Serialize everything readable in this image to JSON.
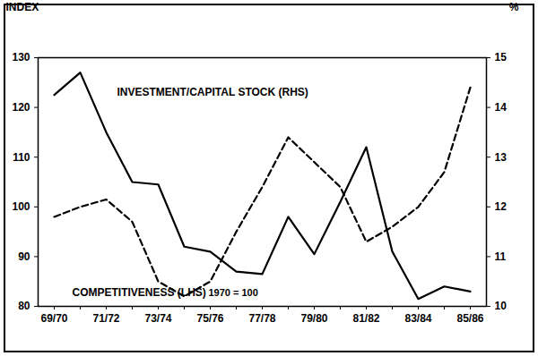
{
  "chart_data": {
    "type": "line",
    "categories": [
      "69/70",
      null,
      "71/72",
      null,
      "73/74",
      null,
      "75/76",
      null,
      "77/78",
      null,
      "79/80",
      null,
      "81/82",
      null,
      "83/84",
      null,
      "85/86"
    ],
    "series": [
      {
        "name": "INVESTMENT/CAPITAL STOCK (RHS)",
        "axis": "y2",
        "color": "#000000",
        "line_style": "solid",
        "values": [
          14.25,
          14.7,
          13.5,
          12.5,
          12.45,
          11.2,
          11.1,
          10.7,
          10.65,
          11.8,
          11.05,
          12.1,
          13.2,
          11.1,
          10.15,
          10.4,
          10.3
        ]
      },
      {
        "name": "COMPETITIVENESS (LHS)",
        "color": "#000000",
        "line_style": "dashed",
        "values": [
          98,
          100,
          101.5,
          97,
          85,
          82,
          85,
          95,
          104,
          114,
          109,
          104,
          93,
          96,
          100,
          107,
          124
        ]
      }
    ],
    "ylabel": "INDEX",
    "y2label": "%",
    "ylim": [
      80,
      130
    ],
    "yticks": [
      80,
      90,
      100,
      110,
      120,
      130
    ],
    "y2lim": [
      10,
      15
    ],
    "y2ticks": [
      10,
      11,
      12,
      13,
      14,
      15
    ],
    "annotations": [
      "1970 = 100"
    ]
  }
}
